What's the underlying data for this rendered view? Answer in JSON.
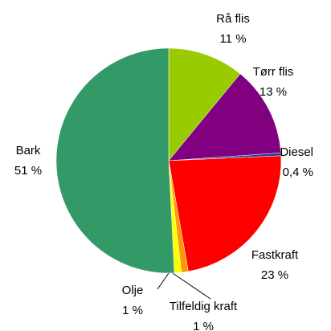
{
  "chart_data": {
    "type": "pie",
    "categories": [
      "Rå flis",
      "Tørr flis",
      "Diesel",
      "Fastkraft",
      "Tilfeldig kraft",
      "Olje",
      "Bark"
    ],
    "values": [
      11,
      13,
      0.4,
      23,
      1,
      1,
      51
    ],
    "value_labels": [
      "11 %",
      "13 %",
      "0,4 %",
      "23 %",
      "1 %",
      "1 %",
      "51 %"
    ],
    "colors": [
      "#99cc00",
      "#800080",
      "#1f3a93",
      "#ff0000",
      "#ff9900",
      "#ffff00",
      "#339966"
    ]
  }
}
